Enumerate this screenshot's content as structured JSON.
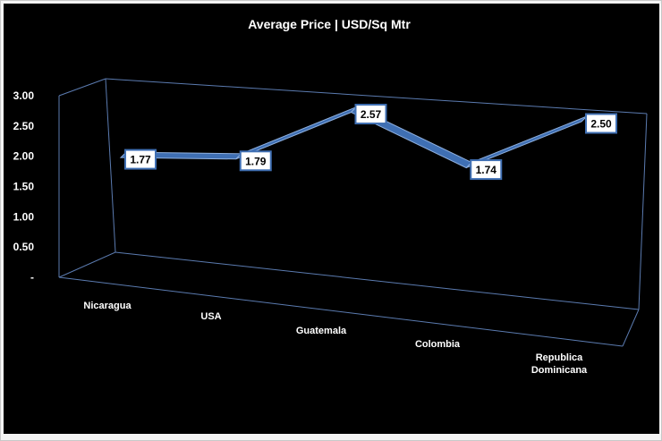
{
  "chart_data": {
    "type": "line",
    "title": "Average Price | USD/Sq Mtr",
    "categories": [
      "Nicaragua",
      "USA",
      "Guatemala",
      "Colombia",
      "Republica Dominicana"
    ],
    "values": [
      1.77,
      1.79,
      2.57,
      1.74,
      2.5
    ],
    "data_labels": [
      "1.77",
      "1.79",
      "2.57",
      "1.74",
      "2.50"
    ],
    "y_ticks": [
      "-",
      "0.50",
      "1.00",
      "1.50",
      "2.00",
      "2.50",
      "3.00"
    ],
    "ylim": [
      0,
      3
    ],
    "xlabel": "",
    "ylabel": "",
    "style": "3d-line",
    "grid": false,
    "legend": "none",
    "colors": {
      "background": "#000000",
      "ribbon_top": "#8fb0de",
      "ribbon_front": "#3f6fb3",
      "frame": "#5b7bb0",
      "label_fill": "#ffffff",
      "label_border": "#3f6fb3",
      "text": "#ffffff"
    }
  }
}
